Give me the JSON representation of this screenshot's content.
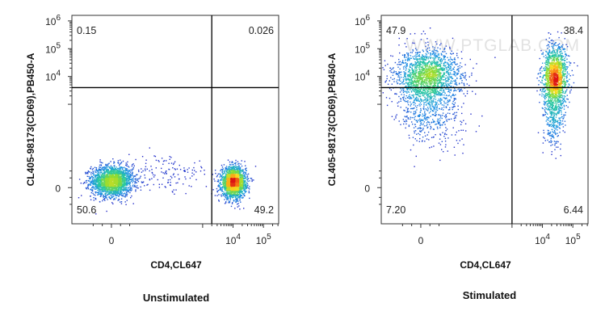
{
  "chart_data": [
    {
      "type": "scatter",
      "caption": "Unstimulated",
      "xlabel": "CD4,CL647",
      "ylabel": "CL405-98173(CD69),PB450-A",
      "x_ticks": [
        {
          "value": 0,
          "base": "0",
          "exp": ""
        },
        {
          "value": 4,
          "base": "10",
          "exp": "4"
        },
        {
          "value": 5,
          "base": "10",
          "exp": "5"
        }
      ],
      "y_ticks": [
        {
          "value": 0,
          "base": "0",
          "exp": ""
        },
        {
          "value": 4,
          "base": "10",
          "exp": "4"
        },
        {
          "value": 5,
          "base": "10",
          "exp": "5"
        },
        {
          "value": 6,
          "base": "10",
          "exp": "6"
        }
      ],
      "xlim": [
        -1.3,
        5.5
      ],
      "ylim": [
        -1.3,
        6.2
      ],
      "gate": {
        "x": 3.3,
        "y": 3.6
      },
      "quadrants": {
        "upper_left": "0.15",
        "upper_right": "0.026",
        "lower_left": "50.6",
        "lower_right": "49.2"
      },
      "populations": [
        {
          "cx": 0.0,
          "cy": 0.25,
          "sx": 0.34,
          "sy": 0.28,
          "n": 2000
        },
        {
          "cx": 4.0,
          "cy": 0.2,
          "sx": 0.2,
          "sy": 0.27,
          "n": 2000
        },
        {
          "cx": 1.7,
          "cy": 0.5,
          "sx": 0.8,
          "sy": 0.35,
          "n": 160
        }
      ]
    },
    {
      "type": "scatter",
      "caption": "Stimulated",
      "xlabel": "CD4,CL647",
      "ylabel": "CL405-98173(CD69),PB450-A",
      "x_ticks": [
        {
          "value": 0,
          "base": "0",
          "exp": ""
        },
        {
          "value": 4,
          "base": "10",
          "exp": "4"
        },
        {
          "value": 5,
          "base": "10",
          "exp": "5"
        }
      ],
      "y_ticks": [
        {
          "value": 0,
          "base": "0",
          "exp": ""
        },
        {
          "value": 4,
          "base": "10",
          "exp": "4"
        },
        {
          "value": 5,
          "base": "10",
          "exp": "5"
        },
        {
          "value": 6,
          "base": "10",
          "exp": "6"
        }
      ],
      "xlim": [
        -1.3,
        5.5
      ],
      "ylim": [
        -1.3,
        6.2
      ],
      "gate": {
        "x": 3.0,
        "y": 3.6
      },
      "quadrants": {
        "upper_left": "47.9",
        "upper_right": "38.4",
        "lower_left": "7.20",
        "lower_right": "6.44"
      },
      "populations": [
        {
          "cx": 0.2,
          "cy": 4.0,
          "sx": 0.55,
          "sy": 0.5,
          "n": 1800
        },
        {
          "cx": 4.4,
          "cy": 4.0,
          "sx": 0.2,
          "sy": 0.55,
          "n": 1500
        },
        {
          "cx": 0.3,
          "cy": 2.6,
          "sx": 0.5,
          "sy": 0.6,
          "n": 450
        },
        {
          "cx": 4.35,
          "cy": 2.6,
          "sx": 0.18,
          "sy": 0.6,
          "n": 320
        }
      ]
    }
  ],
  "watermark": "WWW.PTGLAB.COM"
}
